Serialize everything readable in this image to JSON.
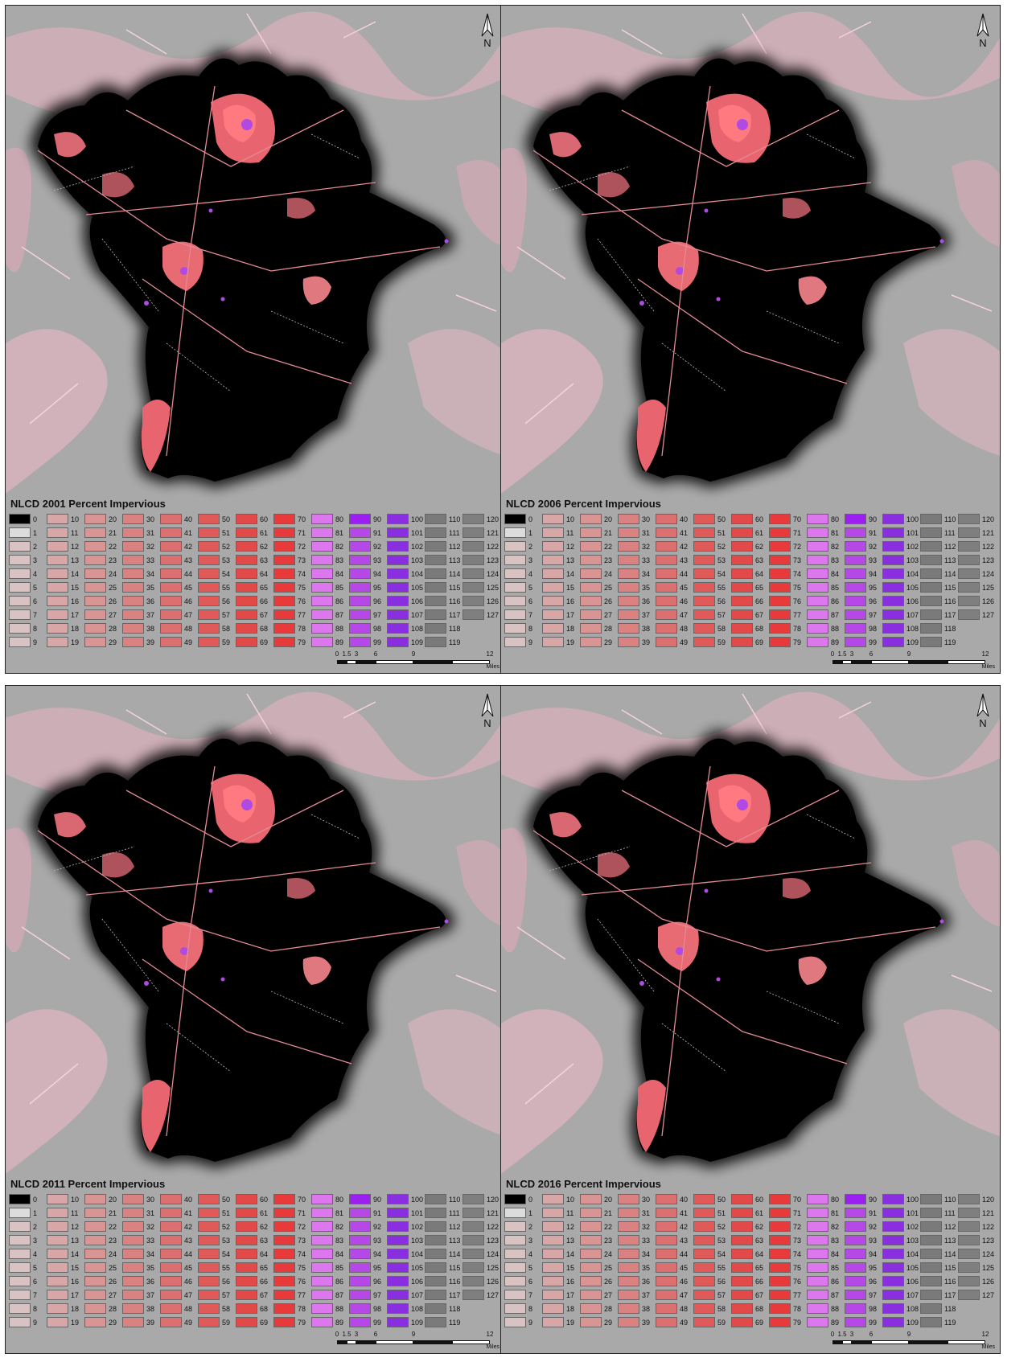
{
  "panels": [
    {
      "title": "NLCD 2001 Percent Impervious"
    },
    {
      "title": "NLCD 2006 Percent Impervious"
    },
    {
      "title": "NLCD 2011 Percent Impervious"
    },
    {
      "title": "NLCD 2016 Percent Impervious"
    }
  ],
  "north_label": "N",
  "scale": {
    "ticks": [
      "0",
      "1.5",
      "3",
      "6",
      "9",
      "12"
    ],
    "units": "Miles"
  },
  "legend_classes": [
    "0",
    "1",
    "2",
    "3",
    "4",
    "5",
    "6",
    "7",
    "8",
    "9",
    "10",
    "11",
    "12",
    "13",
    "14",
    "15",
    "16",
    "17",
    "18",
    "19",
    "20",
    "21",
    "22",
    "23",
    "24",
    "25",
    "26",
    "27",
    "28",
    "29",
    "30",
    "31",
    "32",
    "33",
    "34",
    "35",
    "36",
    "37",
    "38",
    "39",
    "40",
    "41",
    "42",
    "43",
    "44",
    "45",
    "46",
    "47",
    "48",
    "49",
    "50",
    "51",
    "52",
    "53",
    "54",
    "55",
    "56",
    "57",
    "58",
    "59",
    "60",
    "61",
    "62",
    "63",
    "64",
    "65",
    "66",
    "67",
    "68",
    "69",
    "70",
    "71",
    "72",
    "73",
    "74",
    "75",
    "76",
    "77",
    "78",
    "79",
    "80",
    "81",
    "82",
    "83",
    "84",
    "85",
    "86",
    "87",
    "88",
    "89",
    "90",
    "91",
    "92",
    "93",
    "94",
    "95",
    "96",
    "97",
    "98",
    "99",
    "100",
    "101",
    "102",
    "103",
    "104",
    "105",
    "106",
    "107",
    "108",
    "109",
    "110",
    "111",
    "112",
    "113",
    "114",
    "115",
    "116",
    "117",
    "118",
    "119",
    "120",
    "121",
    "122",
    "123",
    "124",
    "125",
    "126",
    "127"
  ],
  "legend_group_colors": [
    "#d9c2c2",
    "#d8a6a6",
    "#d99494",
    "#da8181",
    "#dc6f6f",
    "#e05a5a",
    "#e24949",
    "#e83a3a",
    "#dd77ee",
    "#b648e8",
    "#8a2fe0",
    "#7a7a7a",
    "#7f7f7f"
  ],
  "legend_special_colors": {
    "0": "#000000",
    "90": "#9b1ff0",
    "1": "#dcdcdc"
  },
  "map_colors": {
    "background": "#a9a9a9",
    "county": "#000000",
    "developed": "#e8646e",
    "dense": "#b14ae2",
    "outside_dev": "#f0b8c6"
  }
}
